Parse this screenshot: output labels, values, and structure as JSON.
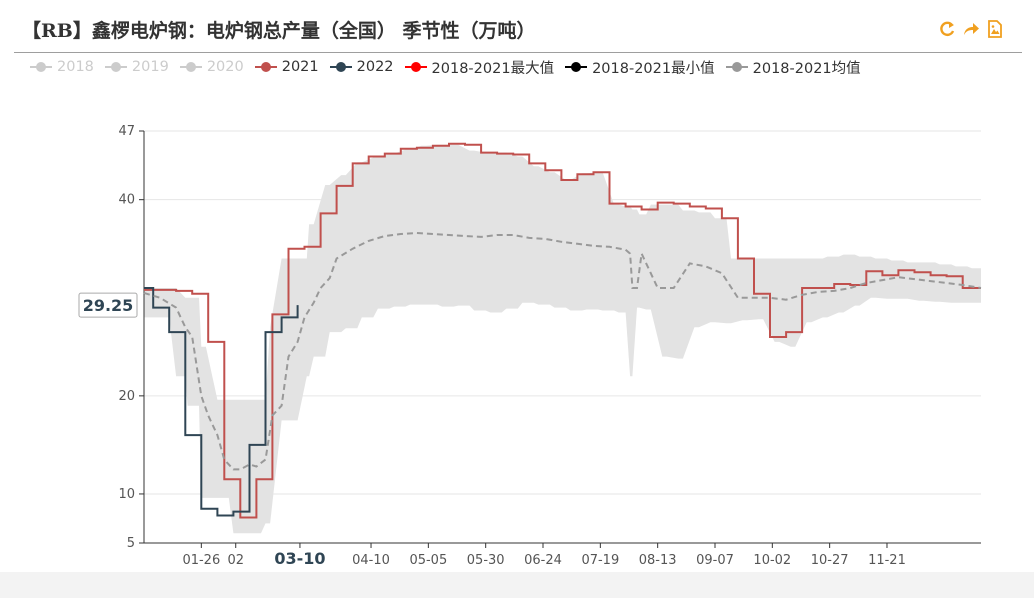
{
  "title": "【RB】鑫椤电炉钢：电炉钢总产量（全国） 季节性（万吨）",
  "toolbar": {
    "refresh_icon": "refresh-icon",
    "share_icon": "share-icon",
    "save_icon": "save-image-icon"
  },
  "colors": {
    "s2018": "#cccccc",
    "s2019": "#cccccc",
    "s2020": "#cccccc",
    "s2021": "#c0504d",
    "s2022": "#2f4554",
    "smax": "#ff0000",
    "smin": "#000000",
    "savg": "#999999",
    "band": "#e3e3e3",
    "axis": "#333333",
    "grid": "#e6e6e6"
  },
  "chart_data": {
    "type": "line",
    "title": "【RB】鑫椤电炉钢：电炉钢总产量（全国） 季节性（万吨）",
    "xlabel": "",
    "ylabel": "",
    "ylim": [
      5,
      47
    ],
    "yticks": [
      5,
      10,
      20,
      40,
      47
    ],
    "ytick_labels": [
      "5",
      "10",
      "20",
      "40",
      "47"
    ],
    "xlim": [
      0,
      365
    ],
    "xticks": [
      {
        "day": 25,
        "label": "01-26"
      },
      {
        "day": 40,
        "label": "02"
      },
      {
        "day": 68,
        "label": "03-10",
        "bold": true
      },
      {
        "day": 99,
        "label": "04-10"
      },
      {
        "day": 124,
        "label": "05-05"
      },
      {
        "day": 149,
        "label": "05-30"
      },
      {
        "day": 174,
        "label": "06-24"
      },
      {
        "day": 199,
        "label": "07-19"
      },
      {
        "day": 224,
        "label": "08-13"
      },
      {
        "day": 249,
        "label": "09-07"
      },
      {
        "day": 274,
        "label": "10-02"
      },
      {
        "day": 299,
        "label": "10-27"
      },
      {
        "day": 324,
        "label": "11-21"
      }
    ],
    "pointer_label": "29.25",
    "pointer_value": 29.25,
    "legend": [
      {
        "name": "2018",
        "key": "s2018",
        "active": false
      },
      {
        "name": "2019",
        "key": "s2019",
        "active": false
      },
      {
        "name": "2020",
        "key": "s2020",
        "active": false
      },
      {
        "name": "2021",
        "key": "s2021",
        "active": true
      },
      {
        "name": "2022",
        "key": "s2022",
        "active": true
      },
      {
        "name": "2018-2021最大值",
        "key": "smax",
        "active": true
      },
      {
        "name": "2018-2021最小值",
        "key": "smin",
        "active": true
      },
      {
        "name": "2018-2021均值",
        "key": "savg",
        "active": true
      }
    ],
    "band_x": [
      0,
      4,
      11,
      14,
      18,
      19,
      24,
      25,
      27,
      32,
      36,
      37,
      39,
      44,
      46,
      51,
      53,
      55,
      60,
      65,
      67,
      71,
      72,
      74,
      79,
      81,
      86,
      88,
      93,
      95,
      100,
      102,
      107,
      109,
      114,
      116,
      121,
      123,
      128,
      130,
      135,
      137,
      142,
      144,
      149,
      151,
      156,
      158,
      163,
      165,
      170,
      172,
      177,
      179,
      184,
      186,
      191,
      193,
      198,
      200,
      205,
      207,
      210,
      212,
      213,
      215,
      216,
      219,
      221,
      226,
      228,
      233,
      235,
      240,
      242,
      247,
      249,
      254,
      256,
      261,
      263,
      268,
      270,
      275,
      277,
      282,
      284,
      289,
      291,
      296,
      298,
      303,
      305,
      310,
      312,
      317,
      319,
      324,
      326,
      331,
      333,
      338,
      340,
      345,
      347,
      352,
      354,
      359,
      361,
      365
    ],
    "band_max": [
      31,
      31.0,
      31.0,
      31.0,
      30.0,
      30.0,
      30.0,
      25.0,
      25.0,
      19.6,
      19.6,
      19.6,
      19.6,
      19.6,
      19.6,
      19.6,
      19.6,
      27.0,
      34.0,
      34.0,
      34.0,
      34.0,
      37.5,
      37.5,
      41.5,
      41.5,
      42.5,
      42.5,
      43.8,
      43.8,
      44.3,
      44.3,
      44.7,
      44.7,
      45.1,
      45.1,
      45.5,
      45.5,
      45.6,
      45.6,
      45.6,
      45.6,
      45.0,
      45.0,
      44.8,
      44.8,
      44.8,
      44.8,
      44.4,
      44.4,
      43.4,
      43.4,
      42.8,
      42.8,
      42.0,
      42.0,
      42.7,
      42.7,
      42.8,
      42.8,
      39.5,
      39.5,
      39.3,
      39.3,
      39.0,
      39.0,
      38.5,
      38.5,
      39.5,
      39.5,
      39.5,
      39.5,
      38.9,
      38.9,
      38.7,
      38.7,
      38.1,
      38.1,
      34.0,
      34.0,
      34.0,
      34.0,
      34.0,
      34.0,
      34.0,
      34.0,
      34.0,
      34.0,
      34.0,
      34.0,
      34.2,
      34.2,
      34.4,
      34.4,
      34.2,
      34.2,
      34.0,
      34.0,
      33.8,
      33.8,
      33.6,
      33.6,
      33.6,
      33.6,
      33.4,
      33.4,
      33.2,
      33.2,
      33.0,
      33.0
    ],
    "band_min": [
      28,
      28.0,
      28.0,
      22.0,
      22.0,
      19.0,
      19.0,
      9.6,
      9.6,
      9.6,
      9.6,
      9.6,
      6.0,
      6.0,
      6.0,
      6.0,
      7.0,
      7.0,
      17.5,
      17.5,
      17.5,
      22.0,
      22.0,
      24.0,
      24.0,
      26.5,
      26.5,
      26.9,
      26.9,
      28.0,
      28.0,
      28.9,
      28.9,
      29.1,
      29.1,
      29.3,
      29.3,
      29.3,
      29.3,
      29.1,
      29.1,
      29.2,
      29.2,
      28.7,
      28.7,
      28.5,
      28.5,
      28.9,
      28.9,
      29.5,
      29.5,
      29.3,
      29.3,
      29.0,
      29.0,
      28.7,
      28.7,
      28.8,
      28.8,
      28.7,
      28.7,
      28.5,
      28.5,
      22.0,
      22.0,
      29.0,
      29.0,
      28.8,
      28.8,
      24.0,
      24.0,
      23.8,
      23.8,
      27.0,
      27.0,
      27.5,
      27.5,
      27.4,
      27.4,
      27.7,
      27.7,
      27.8,
      27.8,
      25.5,
      25.5,
      25.0,
      25.0,
      27.5,
      27.5,
      28.0,
      28.0,
      28.5,
      28.5,
      29.2,
      29.2,
      30.0,
      30.0,
      29.9,
      29.9,
      29.9,
      29.9,
      29.7,
      29.7,
      29.6,
      29.6,
      29.5,
      29.5,
      29.5,
      29.5,
      29.5
    ],
    "series": [
      {
        "name": "2021",
        "key": "s2021",
        "step": true,
        "x": [
          0,
          7,
          14,
          21,
          28,
          35,
          42,
          49,
          56,
          63,
          70,
          77,
          84,
          91,
          98,
          105,
          112,
          119,
          126,
          133,
          140,
          147,
          154,
          161,
          168,
          175,
          182,
          189,
          196,
          203,
          210,
          217,
          224,
          231,
          238,
          245,
          252,
          259,
          266,
          273,
          280,
          287,
          294,
          301,
          308,
          315,
          322,
          329,
          336,
          343,
          350,
          357,
          365
        ],
        "y": [
          30.8,
          30.8,
          30.7,
          30.4,
          25.5,
          11.5,
          7.6,
          11.5,
          28.3,
          35.0,
          35.2,
          38.6,
          41.4,
          43.7,
          44.4,
          44.7,
          45.2,
          45.3,
          45.5,
          45.7,
          45.6,
          44.8,
          44.7,
          44.6,
          43.7,
          43.0,
          42.0,
          42.6,
          42.8,
          39.6,
          39.3,
          39.0,
          39.7,
          39.6,
          39.3,
          39.1,
          38.1,
          34.0,
          30.4,
          26.0,
          26.5,
          31.0,
          31.0,
          31.4,
          31.3,
          32.7,
          32.3,
          32.8,
          32.6,
          32.3,
          32.2,
          31.0,
          31.0
        ]
      },
      {
        "name": "2022",
        "key": "s2022",
        "step": true,
        "x": [
          0,
          4,
          11,
          18,
          25,
          32,
          39,
          46,
          53,
          60,
          67
        ],
        "y": [
          31.0,
          29.0,
          26.5,
          16.0,
          8.5,
          7.8,
          8.2,
          15.0,
          26.5,
          28.0,
          29.25
        ]
      },
      {
        "name": "2018-2021均值",
        "key": "savg",
        "dashed": true,
        "x": [
          0,
          7,
          14,
          18,
          21,
          25,
          28,
          32,
          35,
          39,
          42,
          46,
          49,
          53,
          56,
          60,
          63,
          67,
          70,
          74,
          77,
          81,
          84,
          91,
          98,
          105,
          112,
          119,
          126,
          133,
          140,
          147,
          154,
          161,
          168,
          175,
          182,
          189,
          196,
          203,
          210,
          212,
          213,
          215,
          217,
          224,
          231,
          238,
          245,
          252,
          259,
          266,
          273,
          280,
          287,
          294,
          301,
          308,
          315,
          322,
          329,
          336,
          343,
          350,
          357,
          365
        ],
        "y": [
          30.5,
          30.0,
          29.0,
          27.0,
          26.0,
          20.0,
          18.0,
          16.0,
          13.5,
          12.5,
          12.5,
          13.0,
          12.8,
          13.5,
          18.0,
          19.0,
          24.0,
          25.5,
          28.0,
          29.5,
          31.0,
          32.0,
          34.0,
          35.0,
          35.8,
          36.3,
          36.5,
          36.6,
          36.5,
          36.4,
          36.3,
          36.2,
          36.4,
          36.4,
          36.1,
          36.0,
          35.7,
          35.5,
          35.3,
          35.2,
          34.9,
          34.5,
          31.0,
          31.0,
          34.5,
          31.0,
          31.0,
          33.5,
          33.2,
          32.5,
          30.0,
          30.0,
          30.0,
          29.8,
          30.3,
          30.6,
          30.7,
          31.0,
          31.5,
          31.8,
          32.1,
          31.9,
          31.7,
          31.5,
          31.3,
          31.0
        ]
      }
    ]
  }
}
